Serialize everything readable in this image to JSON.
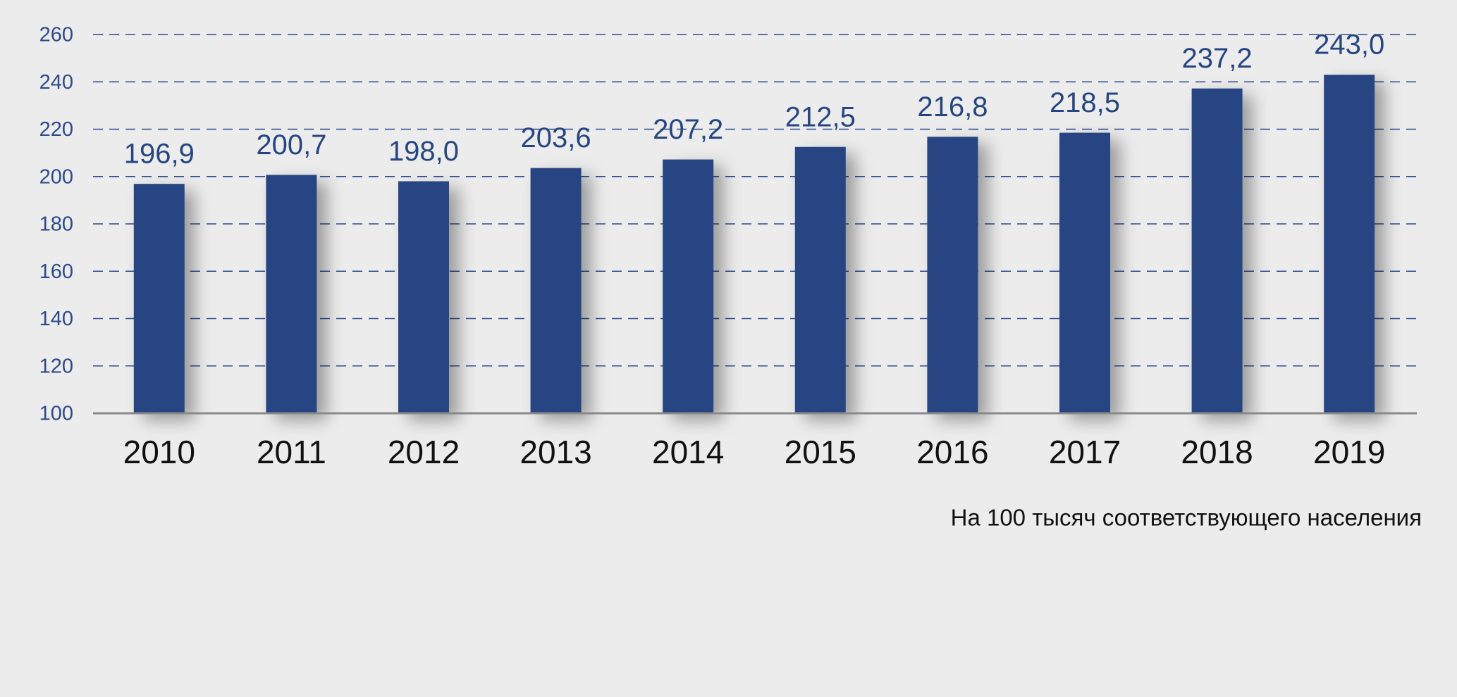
{
  "chart_data": {
    "type": "bar",
    "categories": [
      "2010",
      "2011",
      "2012",
      "2013",
      "2014",
      "2015",
      "2016",
      "2017",
      "2018",
      "2019"
    ],
    "values": [
      196.9,
      200.7,
      198.0,
      203.6,
      207.2,
      212.5,
      216.8,
      218.5,
      237.2,
      243.0
    ],
    "value_labels": [
      "196,9",
      "200,7",
      "198,0",
      "203,6",
      "207,2",
      "212,5",
      "216,8",
      "218,5",
      "237,2",
      "243,0"
    ],
    "color": "#264582",
    "ylim": [
      100,
      260
    ],
    "yticks": [
      100,
      120,
      140,
      160,
      180,
      200,
      220,
      240,
      260
    ],
    "grid": true,
    "annotation": "На 100 тысяч соответствующего населения"
  }
}
